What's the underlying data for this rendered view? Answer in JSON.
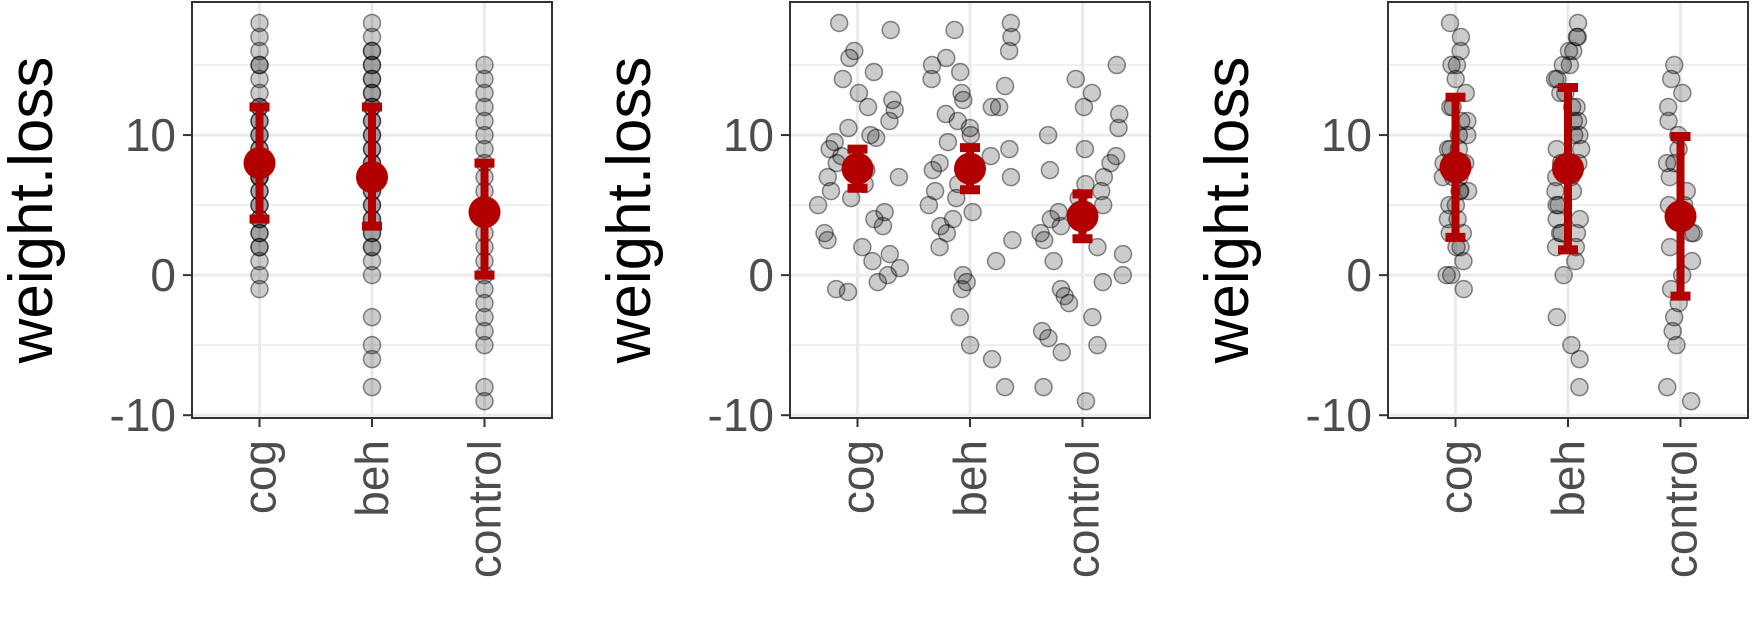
{
  "chart_data": [
    {
      "type": "scatter",
      "variant": "points-with-mean-sd",
      "ylabel": "weight.loss",
      "categories": [
        "cog",
        "beh",
        "control"
      ],
      "yticks": [
        -10,
        0,
        10
      ],
      "ylim": [
        -10.2,
        19.5
      ],
      "grid": true,
      "point_color": "#000000",
      "summary_color": "#b20000",
      "jitter": 0,
      "points": {
        "cog": [
          18,
          17,
          16,
          15,
          15,
          14,
          13,
          12,
          12,
          11,
          11,
          10,
          10,
          9,
          9,
          8,
          8,
          8,
          7,
          7,
          7,
          6,
          6,
          5,
          5,
          4,
          4,
          3,
          3,
          2,
          2,
          1,
          0,
          -1
        ],
        "beh": [
          18,
          17,
          16,
          16,
          15,
          15,
          14,
          14,
          13,
          13,
          12,
          12,
          11,
          11,
          10,
          10,
          9,
          9,
          8,
          8,
          7,
          7,
          6,
          6,
          5,
          5,
          4,
          4,
          3,
          3,
          2,
          2,
          1,
          0,
          -3,
          -5,
          -6,
          -8
        ],
        "control": [
          15,
          14,
          13,
          12,
          11,
          10,
          9,
          8,
          7,
          6,
          5,
          4,
          3,
          2,
          1,
          0,
          -1,
          -2,
          -3,
          -4,
          -5,
          -8,
          -9
        ]
      },
      "summary": [
        {
          "category": "cog",
          "mean": 8.0,
          "low": 4.0,
          "high": 12.0
        },
        {
          "category": "beh",
          "mean": 7.0,
          "low": 3.5,
          "high": 12.0
        },
        {
          "category": "control",
          "mean": 4.5,
          "low": 0.0,
          "high": 8.0
        }
      ]
    },
    {
      "type": "scatter",
      "variant": "jittered-points-with-mean-se",
      "ylabel": "weight.loss",
      "categories": [
        "cog",
        "beh",
        "control"
      ],
      "yticks": [
        -10,
        0,
        10
      ],
      "ylim": [
        -10.2,
        19.5
      ],
      "grid": true,
      "point_color": "#000000",
      "summary_color": "#b20000",
      "jitter": 0.38,
      "points": {
        "cog": [
          18,
          17.5,
          16,
          15.5,
          14.5,
          14,
          13,
          12.5,
          12,
          11.8,
          11,
          10.5,
          10,
          9.8,
          9.5,
          9,
          8.5,
          8,
          7.5,
          7,
          7,
          6.5,
          6,
          5.5,
          5,
          4.5,
          4,
          3.5,
          3,
          2.5,
          2,
          1.5,
          1,
          0.5,
          0,
          -0.5,
          -1,
          -1.2
        ],
        "beh": [
          18,
          17.5,
          17,
          16,
          15.5,
          15,
          14.5,
          14,
          13.5,
          13,
          12.5,
          12,
          12,
          11.5,
          11,
          10.5,
          10,
          9.5,
          9,
          8.5,
          8,
          7.5,
          7,
          6.5,
          6,
          5.5,
          5,
          4.5,
          4,
          3.5,
          3,
          2.5,
          2,
          1,
          0,
          -0.5,
          -1,
          -3,
          -5,
          -6,
          -8
        ],
        "control": [
          15,
          14,
          13,
          12,
          11.5,
          10.5,
          10,
          9,
          8.5,
          8,
          7.5,
          7,
          6.5,
          6,
          5.5,
          5,
          4.5,
          4,
          3.5,
          3,
          2.5,
          2,
          1.5,
          1,
          0,
          -0.5,
          -1,
          -1.5,
          -2,
          -3,
          -4,
          -4.5,
          -5,
          -5.5,
          -8,
          -9
        ]
      },
      "summary": [
        {
          "category": "cog",
          "mean": 7.6,
          "low": 6.2,
          "high": 9.0
        },
        {
          "category": "beh",
          "mean": 7.6,
          "low": 6.1,
          "high": 9.1
        },
        {
          "category": "control",
          "mean": 4.2,
          "low": 2.6,
          "high": 5.8
        }
      ]
    },
    {
      "type": "scatter",
      "variant": "points-with-mean-sd",
      "ylabel": "weight.loss",
      "categories": [
        "cog",
        "beh",
        "control"
      ],
      "yticks": [
        -10,
        0,
        10
      ],
      "ylim": [
        -10.2,
        19.5
      ],
      "grid": true,
      "point_color": "#000000",
      "summary_color": "#b20000",
      "jitter": 0.12,
      "points": {
        "cog": [
          18,
          17,
          16,
          15,
          15,
          14,
          13,
          12,
          12,
          11,
          11,
          10,
          10,
          9,
          9,
          9,
          8,
          8,
          8,
          7,
          7,
          7,
          6,
          6,
          6,
          5,
          5,
          4,
          4,
          3,
          3,
          2,
          2,
          1,
          0,
          0,
          -1
        ],
        "beh": [
          18,
          17,
          17,
          16,
          16,
          15,
          15,
          14,
          14,
          13,
          13,
          12,
          12,
          11,
          11,
          10,
          10,
          9,
          9,
          8,
          8,
          7,
          7,
          6,
          6,
          5,
          5,
          4,
          4,
          3,
          3,
          3,
          2,
          2,
          1,
          0,
          -3,
          -5,
          -6,
          -8
        ],
        "control": [
          15,
          14,
          13,
          12,
          11,
          10,
          9,
          8,
          8,
          7,
          6,
          5,
          5,
          4,
          3,
          3,
          2,
          1,
          0,
          -1,
          -2,
          -3,
          -4,
          -5,
          -8,
          -9
        ]
      },
      "summary": [
        {
          "category": "cog",
          "mean": 7.7,
          "low": 2.7,
          "high": 12.7
        },
        {
          "category": "beh",
          "mean": 7.6,
          "low": 1.8,
          "high": 13.4
        },
        {
          "category": "control",
          "mean": 4.2,
          "low": -1.5,
          "high": 9.9
        }
      ]
    }
  ]
}
